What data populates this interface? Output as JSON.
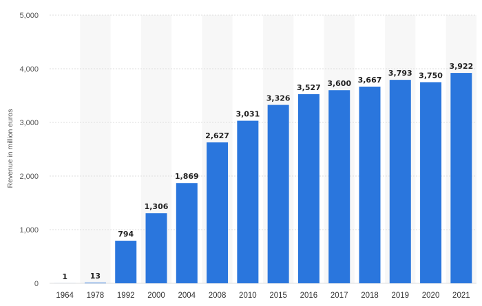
{
  "chart_data": {
    "type": "bar",
    "title": "",
    "xlabel": "",
    "ylabel": "Revenue in million euros",
    "ylim": [
      0,
      5000
    ],
    "yticks": [
      0,
      1000,
      2000,
      3000,
      4000,
      5000
    ],
    "ytick_labels": [
      "0",
      "1,000",
      "2,000",
      "3,000",
      "4,000",
      "5,000"
    ],
    "categories": [
      "1964",
      "1978",
      "1992",
      "2000",
      "2004",
      "2008",
      "2010",
      "2015",
      "2016",
      "2017",
      "2018",
      "2019",
      "2020",
      "2021"
    ],
    "values": [
      1,
      13,
      794,
      1306,
      1869,
      2627,
      3031,
      3326,
      3527,
      3600,
      3667,
      3793,
      3750,
      3922
    ],
    "value_labels": [
      "1",
      "13",
      "794",
      "1,306",
      "1,869",
      "2,627",
      "3,031",
      "3,326",
      "3,527",
      "3,600",
      "3,667",
      "3,793",
      "3,750",
      "3,922"
    ],
    "bar_color": "#2a76dd",
    "alt_band_color": "#f7f7f7",
    "grid": true,
    "grid_color": "#dddddd",
    "legend": "none"
  }
}
